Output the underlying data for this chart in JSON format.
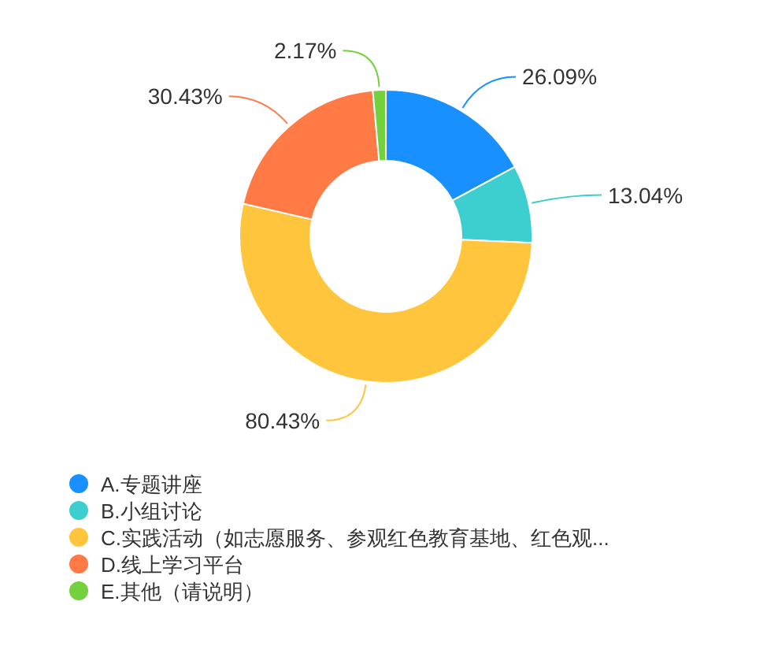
{
  "chart_data": {
    "type": "donut",
    "categories": [
      "A.专题讲座",
      "B.小组讨论",
      "C.实践活动（如志愿服务、参观红色教育基地、红色观...",
      "D.线上学习平台",
      "E.其他（请说明）"
    ],
    "values": [
      26.09,
      13.04,
      80.43,
      30.43,
      2.17
    ],
    "value_labels": [
      "26.09%",
      "13.04%",
      "80.43%",
      "30.43%",
      "2.17%"
    ],
    "colors": [
      "#1890ff",
      "#3dcfcf",
      "#ffc53d",
      "#ff7a45",
      "#73d13d"
    ],
    "legend": "bottom"
  }
}
